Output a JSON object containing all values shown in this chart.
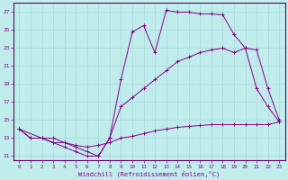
{
  "xlabel": "Windchill (Refroidissement éolien,°C)",
  "bg_color": "#c0ecec",
  "grid_color": "#a8d8d8",
  "line_color": "#880088",
  "spine_color": "#660066",
  "xlim": [
    -0.5,
    23.5
  ],
  "ylim": [
    10.5,
    28
  ],
  "xticks": [
    0,
    1,
    2,
    3,
    4,
    5,
    6,
    7,
    8,
    9,
    10,
    11,
    12,
    13,
    14,
    15,
    16,
    17,
    18,
    19,
    20,
    21,
    22,
    23
  ],
  "yticks": [
    11,
    13,
    15,
    17,
    19,
    21,
    23,
    25,
    27
  ],
  "curve1_x": [
    0,
    1,
    2,
    3,
    4,
    5,
    6,
    7,
    8,
    9,
    10,
    11,
    12,
    13,
    14,
    15,
    16,
    17,
    18,
    19,
    20,
    21,
    22,
    23
  ],
  "curve1_y": [
    14.0,
    13.0,
    13.0,
    13.0,
    12.5,
    12.0,
    11.5,
    11.0,
    13.0,
    19.5,
    24.8,
    25.5,
    22.5,
    27.2,
    27.0,
    27.0,
    26.8,
    26.8,
    26.7,
    24.5,
    23.0,
    18.5,
    16.5,
    14.8
  ],
  "curve2_x": [
    0,
    2,
    3,
    4,
    5,
    6,
    7,
    8,
    9,
    10,
    11,
    12,
    13,
    14,
    15,
    16,
    17,
    18,
    19,
    20,
    21,
    22,
    23
  ],
  "curve2_y": [
    14.0,
    13.0,
    12.5,
    12.0,
    11.5,
    11.0,
    11.0,
    13.0,
    16.5,
    17.5,
    18.5,
    19.5,
    20.5,
    21.5,
    22.0,
    22.5,
    22.8,
    23.0,
    22.5,
    23.0,
    22.8,
    18.5,
    15.0
  ],
  "curve3_x": [
    0,
    1,
    2,
    3,
    4,
    5,
    6,
    7,
    8,
    9,
    10,
    11,
    12,
    13,
    14,
    15,
    16,
    17,
    18,
    19,
    20,
    21,
    22,
    23
  ],
  "curve3_y": [
    14.0,
    13.0,
    13.0,
    12.5,
    12.5,
    12.2,
    12.0,
    12.2,
    12.5,
    13.0,
    13.2,
    13.5,
    13.8,
    14.0,
    14.2,
    14.3,
    14.4,
    14.5,
    14.5,
    14.5,
    14.5,
    14.5,
    14.5,
    14.8
  ]
}
